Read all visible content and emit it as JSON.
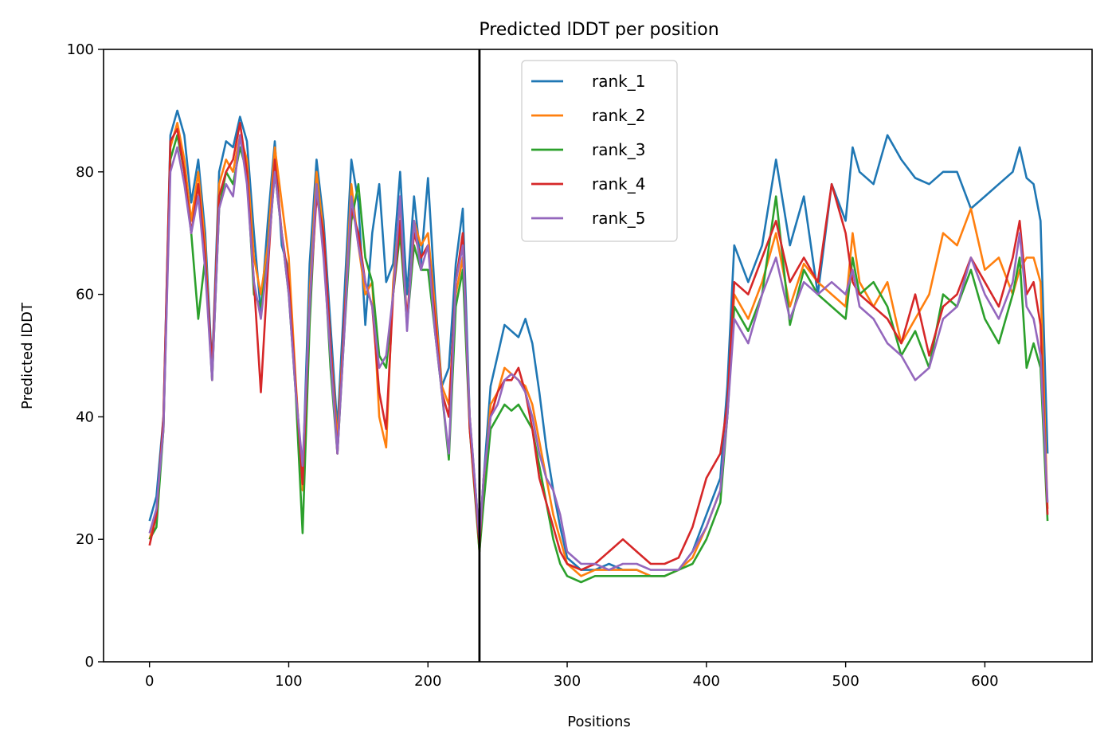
{
  "chart_data": {
    "type": "line",
    "title": "Predicted lDDT per position",
    "xlabel": "Positions",
    "ylabel": "Predicted lDDT",
    "xlim": [
      -33,
      677
    ],
    "ylim": [
      0,
      100
    ],
    "x_ticks": [
      0,
      100,
      200,
      300,
      400,
      500,
      600
    ],
    "y_ticks": [
      0,
      20,
      40,
      60,
      80,
      100
    ],
    "grid": false,
    "legend_position": "upper center",
    "vertical_line": {
      "x": 237,
      "color": "#000000"
    },
    "series": [
      {
        "name": "rank_1",
        "color": "#1f77b4",
        "x": [
          0,
          5,
          10,
          15,
          20,
          25,
          30,
          35,
          40,
          45,
          50,
          55,
          60,
          65,
          70,
          75,
          80,
          85,
          90,
          95,
          100,
          105,
          110,
          115,
          120,
          125,
          130,
          135,
          140,
          145,
          150,
          155,
          160,
          165,
          170,
          175,
          180,
          185,
          190,
          195,
          200,
          205,
          210,
          215,
          220,
          225,
          230,
          237,
          240,
          245,
          250,
          255,
          260,
          265,
          270,
          275,
          280,
          285,
          290,
          295,
          300,
          310,
          320,
          330,
          340,
          350,
          360,
          370,
          380,
          390,
          400,
          410,
          415,
          420,
          430,
          440,
          450,
          460,
          470,
          480,
          490,
          500,
          505,
          510,
          520,
          530,
          540,
          550,
          560,
          570,
          580,
          590,
          600,
          610,
          620,
          625,
          630,
          635,
          640,
          645
        ],
        "y": [
          23,
          27,
          40,
          86,
          90,
          86,
          75,
          82,
          70,
          48,
          80,
          85,
          84,
          89,
          85,
          70,
          57,
          72,
          85,
          68,
          64,
          45,
          30,
          65,
          82,
          72,
          55,
          38,
          60,
          82,
          75,
          55,
          70,
          78,
          62,
          65,
          80,
          60,
          76,
          65,
          79,
          60,
          45,
          48,
          65,
          74,
          40,
          20,
          30,
          45,
          50,
          55,
          54,
          53,
          56,
          52,
          44,
          35,
          28,
          22,
          17,
          15,
          15,
          16,
          15,
          15,
          14,
          14,
          15,
          18,
          24,
          30,
          45,
          68,
          62,
          68,
          82,
          68,
          76,
          60,
          78,
          72,
          84,
          80,
          78,
          86,
          82,
          79,
          78,
          80,
          80,
          74,
          76,
          78,
          80,
          84,
          79,
          78,
          72,
          34
        ]
      },
      {
        "name": "rank_2",
        "color": "#ff7f0e",
        "x": [
          0,
          5,
          10,
          15,
          20,
          25,
          30,
          35,
          40,
          45,
          50,
          55,
          60,
          65,
          70,
          75,
          80,
          85,
          90,
          95,
          100,
          105,
          110,
          115,
          120,
          125,
          130,
          135,
          140,
          145,
          150,
          155,
          160,
          165,
          170,
          175,
          180,
          185,
          190,
          195,
          200,
          205,
          210,
          215,
          220,
          225,
          230,
          237,
          240,
          245,
          250,
          255,
          260,
          265,
          270,
          275,
          280,
          285,
          290,
          295,
          300,
          310,
          320,
          330,
          340,
          350,
          360,
          370,
          380,
          390,
          400,
          410,
          415,
          420,
          430,
          440,
          450,
          460,
          470,
          480,
          490,
          500,
          505,
          510,
          520,
          530,
          540,
          550,
          560,
          570,
          580,
          590,
          600,
          610,
          620,
          625,
          630,
          635,
          640,
          645
        ],
        "y": [
          20,
          24,
          38,
          84,
          88,
          82,
          72,
          80,
          68,
          46,
          78,
          82,
          80,
          86,
          82,
          66,
          60,
          68,
          84,
          75,
          66,
          46,
          28,
          60,
          80,
          70,
          52,
          36,
          56,
          78,
          68,
          60,
          62,
          40,
          35,
          62,
          75,
          55,
          72,
          68,
          70,
          58,
          45,
          42,
          60,
          66,
          40,
          18,
          28,
          42,
          44,
          48,
          47,
          46,
          45,
          42,
          36,
          30,
          24,
          20,
          16,
          14,
          15,
          15,
          15,
          15,
          14,
          14,
          15,
          17,
          22,
          28,
          40,
          60,
          56,
          62,
          70,
          58,
          65,
          62,
          60,
          58,
          70,
          62,
          58,
          62,
          52,
          56,
          60,
          70,
          68,
          74,
          64,
          66,
          60,
          64,
          66,
          66,
          62,
          25
        ]
      },
      {
        "name": "rank_3",
        "color": "#2ca02c",
        "x": [
          0,
          5,
          10,
          15,
          20,
          25,
          30,
          35,
          40,
          45,
          50,
          55,
          60,
          65,
          70,
          75,
          80,
          85,
          90,
          95,
          100,
          105,
          110,
          115,
          120,
          125,
          130,
          135,
          140,
          145,
          150,
          155,
          160,
          165,
          170,
          175,
          180,
          185,
          190,
          195,
          200,
          205,
          210,
          215,
          220,
          225,
          230,
          237,
          240,
          245,
          250,
          255,
          260,
          265,
          270,
          275,
          280,
          285,
          290,
          295,
          300,
          310,
          320,
          330,
          340,
          350,
          360,
          370,
          380,
          390,
          400,
          410,
          415,
          420,
          430,
          440,
          450,
          460,
          470,
          480,
          490,
          500,
          505,
          510,
          520,
          530,
          540,
          550,
          560,
          570,
          580,
          590,
          600,
          610,
          620,
          625,
          630,
          635,
          640,
          645
        ],
        "y": [
          20,
          22,
          38,
          82,
          86,
          80,
          70,
          56,
          66,
          46,
          74,
          80,
          78,
          84,
          80,
          60,
          58,
          66,
          80,
          70,
          60,
          44,
          21,
          55,
          78,
          68,
          48,
          34,
          54,
          72,
          78,
          66,
          62,
          50,
          48,
          60,
          70,
          55,
          68,
          64,
          64,
          54,
          44,
          33,
          58,
          64,
          38,
          18,
          26,
          38,
          40,
          42,
          41,
          42,
          40,
          38,
          32,
          26,
          20,
          16,
          14,
          13,
          14,
          14,
          14,
          14,
          14,
          14,
          15,
          16,
          20,
          26,
          40,
          58,
          54,
          60,
          76,
          55,
          64,
          60,
          58,
          56,
          66,
          60,
          62,
          58,
          50,
          54,
          48,
          60,
          58,
          64,
          56,
          52,
          60,
          66,
          48,
          52,
          48,
          23
        ]
      },
      {
        "name": "rank_4",
        "color": "#d62728",
        "x": [
          0,
          5,
          10,
          15,
          20,
          25,
          30,
          35,
          40,
          45,
          50,
          55,
          60,
          65,
          70,
          75,
          80,
          85,
          90,
          95,
          100,
          105,
          110,
          115,
          120,
          125,
          130,
          135,
          140,
          145,
          150,
          155,
          160,
          165,
          170,
          175,
          180,
          185,
          190,
          195,
          200,
          205,
          210,
          215,
          220,
          225,
          230,
          237,
          240,
          245,
          250,
          255,
          260,
          265,
          270,
          275,
          280,
          285,
          290,
          295,
          300,
          310,
          320,
          330,
          340,
          350,
          360,
          370,
          380,
          390,
          400,
          410,
          415,
          420,
          430,
          440,
          450,
          460,
          470,
          480,
          490,
          500,
          505,
          510,
          520,
          530,
          540,
          550,
          560,
          570,
          580,
          590,
          600,
          610,
          620,
          625,
          630,
          635,
          640,
          645
        ],
        "y": [
          19,
          24,
          40,
          85,
          87,
          80,
          70,
          78,
          66,
          48,
          76,
          80,
          82,
          88,
          80,
          62,
          44,
          64,
          82,
          70,
          62,
          45,
          29,
          58,
          76,
          70,
          52,
          34,
          56,
          74,
          70,
          62,
          58,
          44,
          38,
          60,
          72,
          56,
          70,
          66,
          68,
          56,
          44,
          40,
          62,
          70,
          38,
          19,
          30,
          40,
          44,
          46,
          46,
          48,
          44,
          38,
          30,
          26,
          22,
          18,
          16,
          15,
          16,
          18,
          20,
          18,
          16,
          16,
          17,
          22,
          30,
          34,
          42,
          62,
          60,
          66,
          72,
          62,
          66,
          62,
          78,
          70,
          62,
          60,
          58,
          56,
          52,
          60,
          50,
          58,
          60,
          66,
          62,
          58,
          66,
          72,
          60,
          62,
          55,
          24
        ]
      },
      {
        "name": "rank_5",
        "color": "#9467bd",
        "x": [
          0,
          5,
          10,
          15,
          20,
          25,
          30,
          35,
          40,
          45,
          50,
          55,
          60,
          65,
          70,
          75,
          80,
          85,
          90,
          95,
          100,
          105,
          110,
          115,
          120,
          125,
          130,
          135,
          140,
          145,
          150,
          155,
          160,
          165,
          170,
          175,
          180,
          185,
          190,
          195,
          200,
          205,
          210,
          215,
          220,
          225,
          230,
          237,
          240,
          245,
          250,
          255,
          260,
          265,
          270,
          275,
          280,
          285,
          290,
          295,
          300,
          310,
          320,
          330,
          340,
          350,
          360,
          370,
          380,
          390,
          400,
          410,
          415,
          420,
          430,
          440,
          450,
          460,
          470,
          480,
          490,
          500,
          505,
          510,
          520,
          530,
          540,
          550,
          560,
          570,
          580,
          590,
          600,
          610,
          620,
          625,
          630,
          635,
          640,
          645
        ],
        "y": [
          21,
          25,
          38,
          80,
          84,
          78,
          70,
          76,
          64,
          46,
          74,
          78,
          76,
          86,
          78,
          62,
          56,
          66,
          80,
          70,
          60,
          44,
          32,
          58,
          78,
          66,
          50,
          34,
          54,
          76,
          68,
          62,
          58,
          48,
          50,
          60,
          76,
          54,
          72,
          64,
          68,
          54,
          44,
          34,
          62,
          68,
          40,
          20,
          30,
          40,
          42,
          46,
          47,
          46,
          44,
          40,
          34,
          30,
          28,
          24,
          18,
          16,
          16,
          15,
          16,
          16,
          15,
          15,
          15,
          18,
          22,
          28,
          40,
          56,
          52,
          60,
          66,
          56,
          62,
          60,
          62,
          60,
          64,
          58,
          56,
          52,
          50,
          46,
          48,
          56,
          58,
          66,
          60,
          56,
          62,
          70,
          58,
          56,
          50,
          26
        ]
      }
    ]
  }
}
